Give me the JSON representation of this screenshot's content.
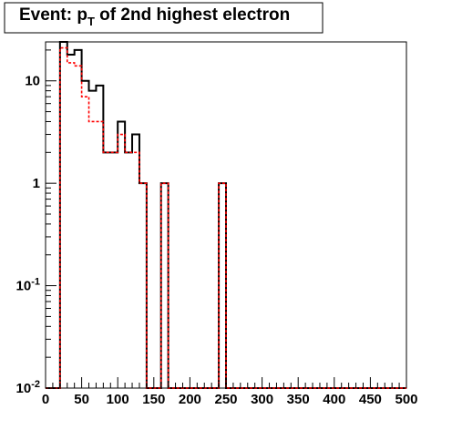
{
  "chart_data": {
    "type": "histogram",
    "title_main": "Event: p",
    "title_sub": "T",
    "title_rest": " of 2nd highest electron",
    "xlabel": "",
    "ylabel": "",
    "xlim": [
      0,
      500
    ],
    "ylim": [
      0.01,
      24
    ],
    "y_scale": "log",
    "grid": false,
    "bin_width": 10,
    "x_tick_labels": [
      "0",
      "50",
      "100",
      "150",
      "200",
      "250",
      "300",
      "350",
      "400",
      "450",
      "500"
    ],
    "x_tick_values": [
      0,
      50,
      100,
      150,
      200,
      250,
      300,
      350,
      400,
      450,
      500
    ],
    "y_tick_values": [
      0.01,
      0.1,
      1,
      10
    ],
    "y_tick_labels": [
      {
        "base": "10",
        "exp": "-2"
      },
      {
        "base": "10",
        "exp": "-1"
      },
      {
        "base": "1",
        "exp": ""
      },
      {
        "base": "10",
        "exp": ""
      }
    ],
    "series": [
      {
        "color": "#000000",
        "style": "solid",
        "values": [
          0.01,
          0.01,
          24,
          18,
          20,
          10,
          8,
          9,
          2,
          2,
          4,
          2,
          3,
          1,
          0.01,
          0.01,
          1,
          0.01,
          0.01,
          0.01,
          0.01,
          0.01,
          0.01,
          0.01,
          1,
          0.01,
          0.01,
          0.01,
          0.01,
          0.01,
          0.01,
          0.01,
          0.01,
          0.01,
          0.01,
          0.01,
          0.01,
          0.01,
          0.01,
          0.01,
          0.01,
          0.01,
          0.01,
          0.01,
          0.01,
          0.01,
          0.01,
          0.01,
          0.01,
          0.01
        ]
      },
      {
        "color": "#ff0000",
        "style": "dashed",
        "values": [
          0.01,
          0.01,
          21,
          15,
          14,
          7,
          4,
          4,
          2,
          2,
          3,
          2,
          2,
          1,
          0.01,
          0.01,
          1,
          0.01,
          0.01,
          0.01,
          0.01,
          0.01,
          0.01,
          0.01,
          1,
          0.01,
          0.01,
          0.01,
          0.01,
          0.01,
          0.01,
          0.01,
          0.01,
          0.01,
          0.01,
          0.01,
          0.01,
          0.01,
          0.01,
          0.01,
          0.01,
          0.01,
          0.01,
          0.01,
          0.01,
          0.01,
          0.01,
          0.01,
          0.01,
          0.01
        ]
      }
    ]
  }
}
